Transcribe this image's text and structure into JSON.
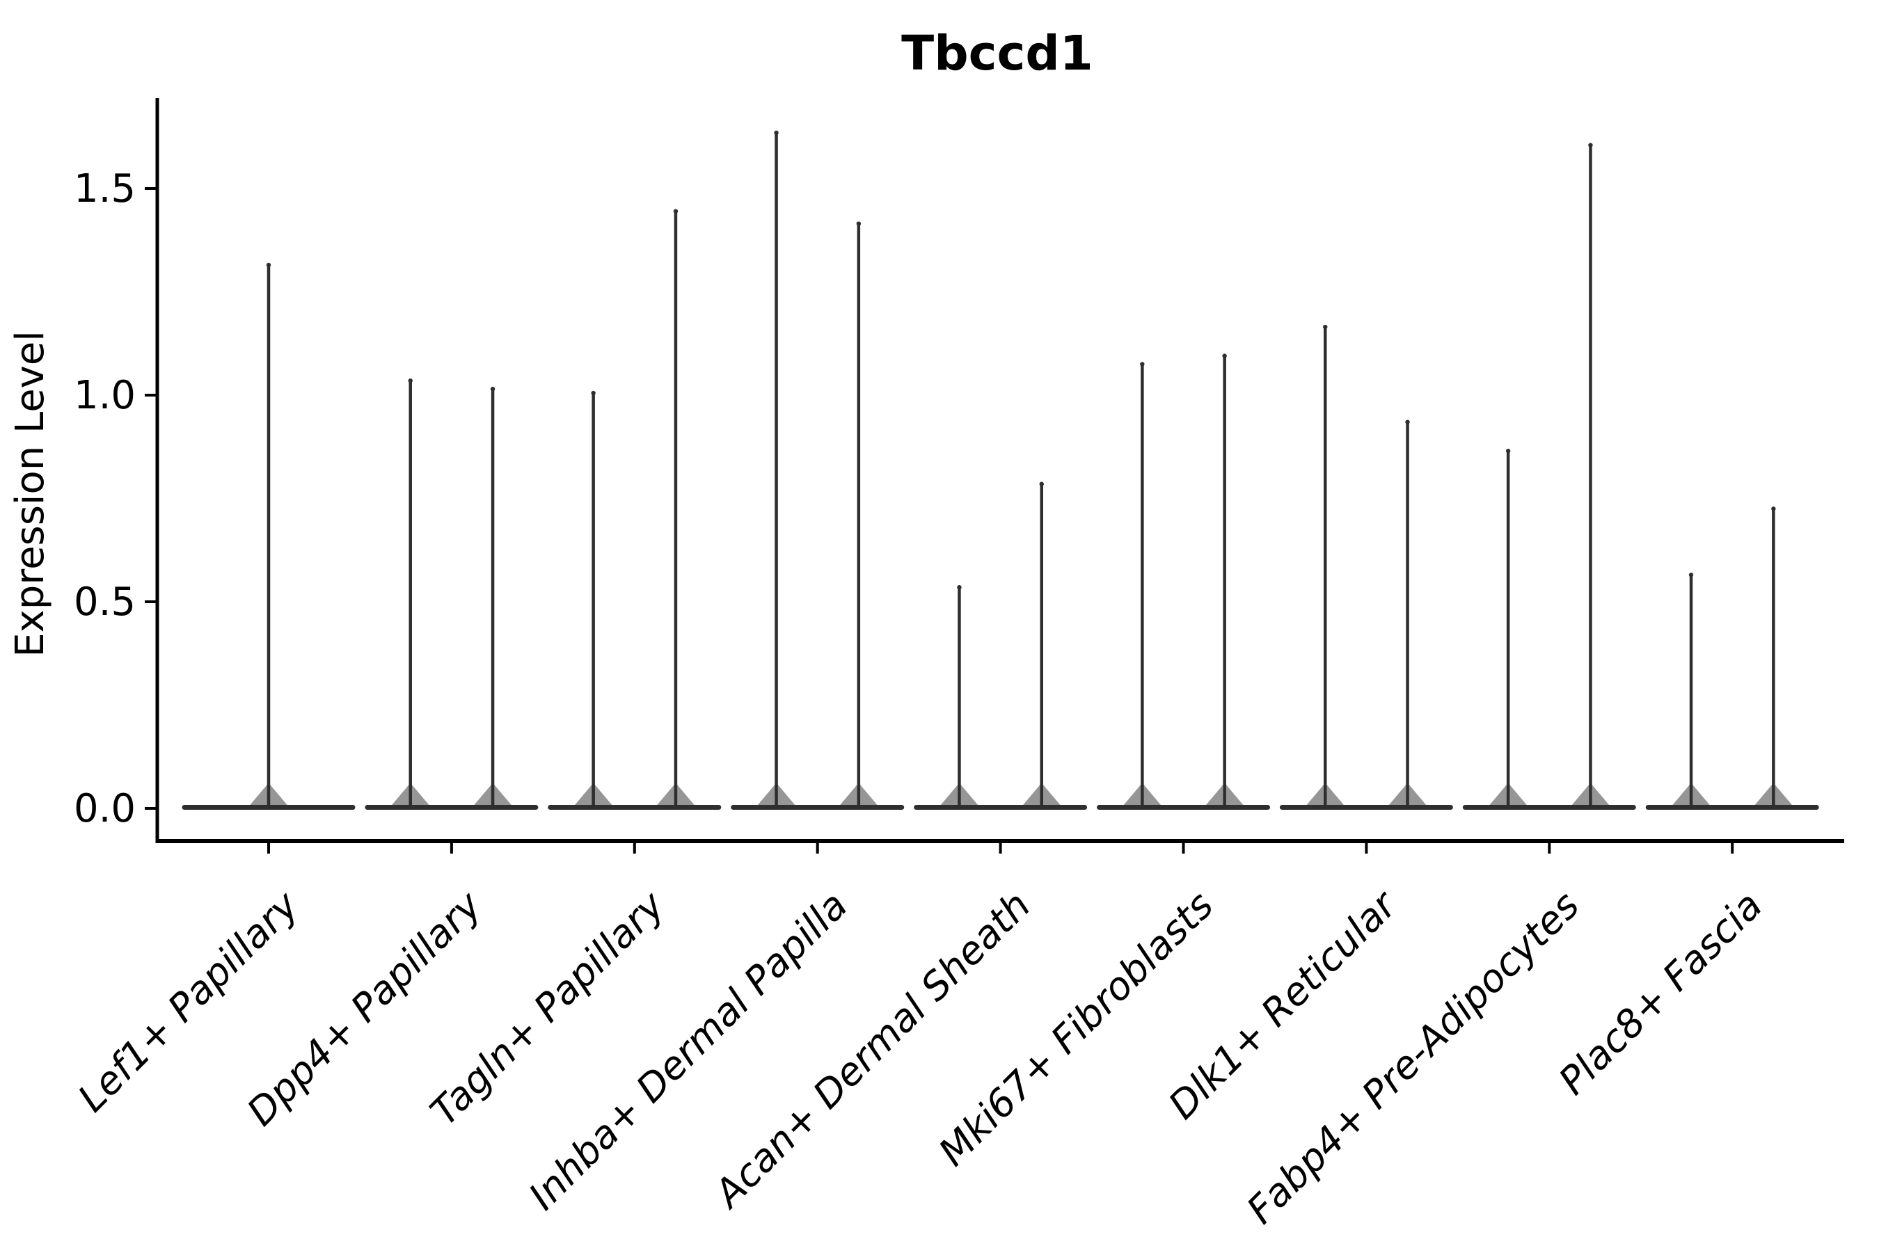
{
  "figure": {
    "title": "Tbccd1"
  },
  "axes": {
    "ylabel": "Expression Level",
    "ytick_labels": [
      "0.0",
      "0.5",
      "1.0",
      "1.5"
    ]
  },
  "chart_data": {
    "type": "violin",
    "title": "Tbccd1",
    "xlabel": "",
    "ylabel": "Expression Level",
    "ylim": [
      -0.08,
      1.72
    ],
    "yticks": [
      0.0,
      0.5,
      1.0,
      1.5
    ],
    "grid": false,
    "legend": null,
    "shape_note": "Seurat-style violins: almost all density is a flat bulge at 0 with a very thin spike rising to the maximum expression value; categories with two violins are dodged left/right, Lef1+ Papillary has a single centered violin",
    "categories": [
      "Lef1+ Papillary",
      "Dpp4+ Papillary",
      "Tagln+ Papillary",
      "Inhba+ Dermal Papilla",
      "Acan+ Dermal Sheath",
      "Mki67+ Fibroblasts",
      "Dlk1+ Reticular",
      "Fabp4+ Pre-Adipocytes",
      "Plac8+ Fascia"
    ],
    "series": [
      {
        "category": "Lef1+ Papillary",
        "violins": [
          {
            "offset": 0.0,
            "max": 1.32
          }
        ]
      },
      {
        "category": "Dpp4+ Papillary",
        "violins": [
          {
            "offset": -0.225,
            "max": 1.04
          },
          {
            "offset": 0.225,
            "max": 1.02
          }
        ]
      },
      {
        "category": "Tagln+ Papillary",
        "violins": [
          {
            "offset": -0.225,
            "max": 1.01
          },
          {
            "offset": 0.225,
            "max": 1.45
          }
        ]
      },
      {
        "category": "Inhba+ Dermal Papilla",
        "violins": [
          {
            "offset": -0.225,
            "max": 1.64
          },
          {
            "offset": 0.225,
            "max": 1.42
          }
        ]
      },
      {
        "category": "Acan+ Dermal Sheath",
        "violins": [
          {
            "offset": -0.225,
            "max": 0.54
          },
          {
            "offset": 0.225,
            "max": 0.79
          }
        ]
      },
      {
        "category": "Mki67+ Fibroblasts",
        "violins": [
          {
            "offset": -0.225,
            "max": 1.08
          },
          {
            "offset": 0.225,
            "max": 1.1
          }
        ]
      },
      {
        "category": "Dlk1+ Reticular",
        "violins": [
          {
            "offset": -0.225,
            "max": 1.17
          },
          {
            "offset": 0.225,
            "max": 0.94
          }
        ]
      },
      {
        "category": "Fabp4+ Pre-Adipocytes",
        "violins": [
          {
            "offset": -0.225,
            "max": 0.87
          },
          {
            "offset": 0.225,
            "max": 1.61
          }
        ]
      },
      {
        "category": "Plac8+ Fascia",
        "violins": [
          {
            "offset": -0.225,
            "max": 0.57
          },
          {
            "offset": 0.225,
            "max": 0.73
          }
        ]
      }
    ],
    "violin_color": "#2e2e2e",
    "axis_color": "#000000"
  }
}
